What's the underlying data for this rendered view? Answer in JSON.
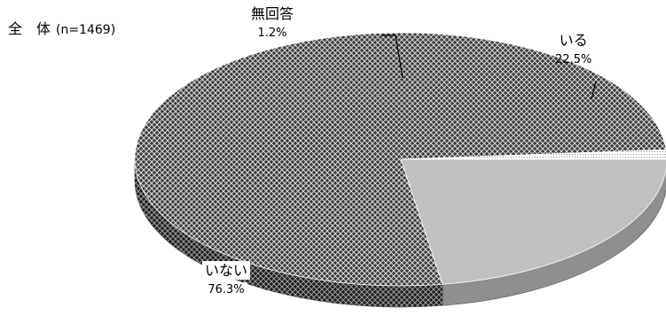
{
  "chart_data": {
    "type": "pie",
    "title": "全　体",
    "subtitle": "(n=1469)",
    "slices": [
      {
        "label": "いる",
        "value": 22.5,
        "value_label": "22.5%",
        "color": "#c0c0c0",
        "pattern": "solid"
      },
      {
        "label": "いない",
        "value": 76.3,
        "value_label": "76.3%",
        "color": "#3a3a3a",
        "pattern": "crosshatch"
      },
      {
        "label": "無回答",
        "value": 1.2,
        "value_label": "1.2%",
        "color": "#f2f2f2",
        "pattern": "dots"
      }
    ],
    "legend": "none",
    "style": "3d"
  }
}
